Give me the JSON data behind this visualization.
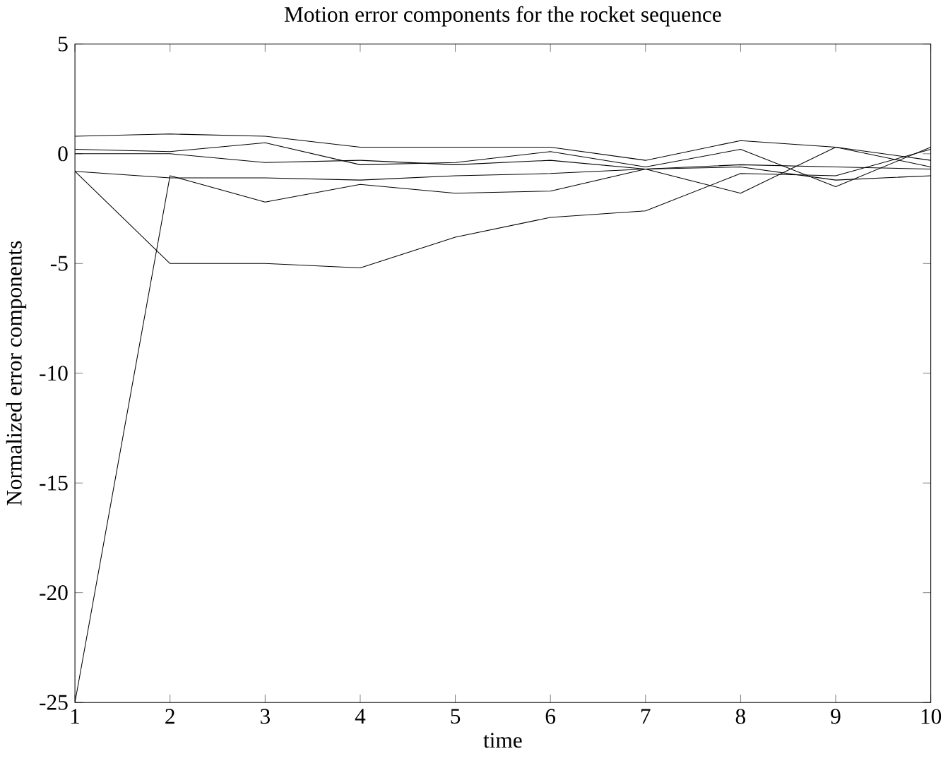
{
  "chart_data": {
    "type": "line",
    "title": "Motion error components for the rocket  sequence",
    "xlabel": "time",
    "ylabel": "Normalized error components",
    "x": [
      1,
      2,
      3,
      4,
      5,
      6,
      7,
      8,
      9,
      10
    ],
    "series": [
      {
        "color": "#000000",
        "values": [
          0.8,
          0.9,
          0.8,
          0.3,
          0.3,
          0.3,
          -0.3,
          0.6,
          0.3,
          -0.3
        ]
      },
      {
        "color": "#000000",
        "values": [
          0.2,
          0.1,
          0.5,
          -0.5,
          -0.4,
          0.1,
          -0.6,
          0.2,
          -1.5,
          0.3
        ]
      },
      {
        "color": "#000000",
        "values": [
          0,
          0,
          -0.4,
          -0.3,
          -0.5,
          -0.3,
          -0.7,
          -0.5,
          -0.6,
          -0.7
        ]
      },
      {
        "color": "#000000",
        "values": [
          -0.8,
          -1.1,
          -1.1,
          -1.2,
          -1.0,
          -0.9,
          -0.7,
          -0.6,
          -1.2,
          -1.0
        ]
      },
      {
        "color": "#000000",
        "values": [
          -0.8,
          -5,
          -5,
          -5.2,
          -3.8,
          -2.9,
          -2.6,
          -0.9,
          -1.0,
          0.2
        ]
      },
      {
        "color": "#000000",
        "values": [
          -25,
          -1,
          -2.2,
          -1.4,
          -1.8,
          -1.7,
          -0.7,
          -1.8,
          0.3,
          -0.6
        ]
      }
    ],
    "xlim": [
      1,
      10
    ],
    "ylim": [
      -25,
      5
    ],
    "xticks": [
      1,
      2,
      3,
      4,
      5,
      6,
      7,
      8,
      9,
      10
    ],
    "yticks": [
      -25,
      -20,
      -15,
      -10,
      -5,
      0,
      5
    ],
    "grid": false,
    "marker": "none",
    "line_style": "solid"
  }
}
